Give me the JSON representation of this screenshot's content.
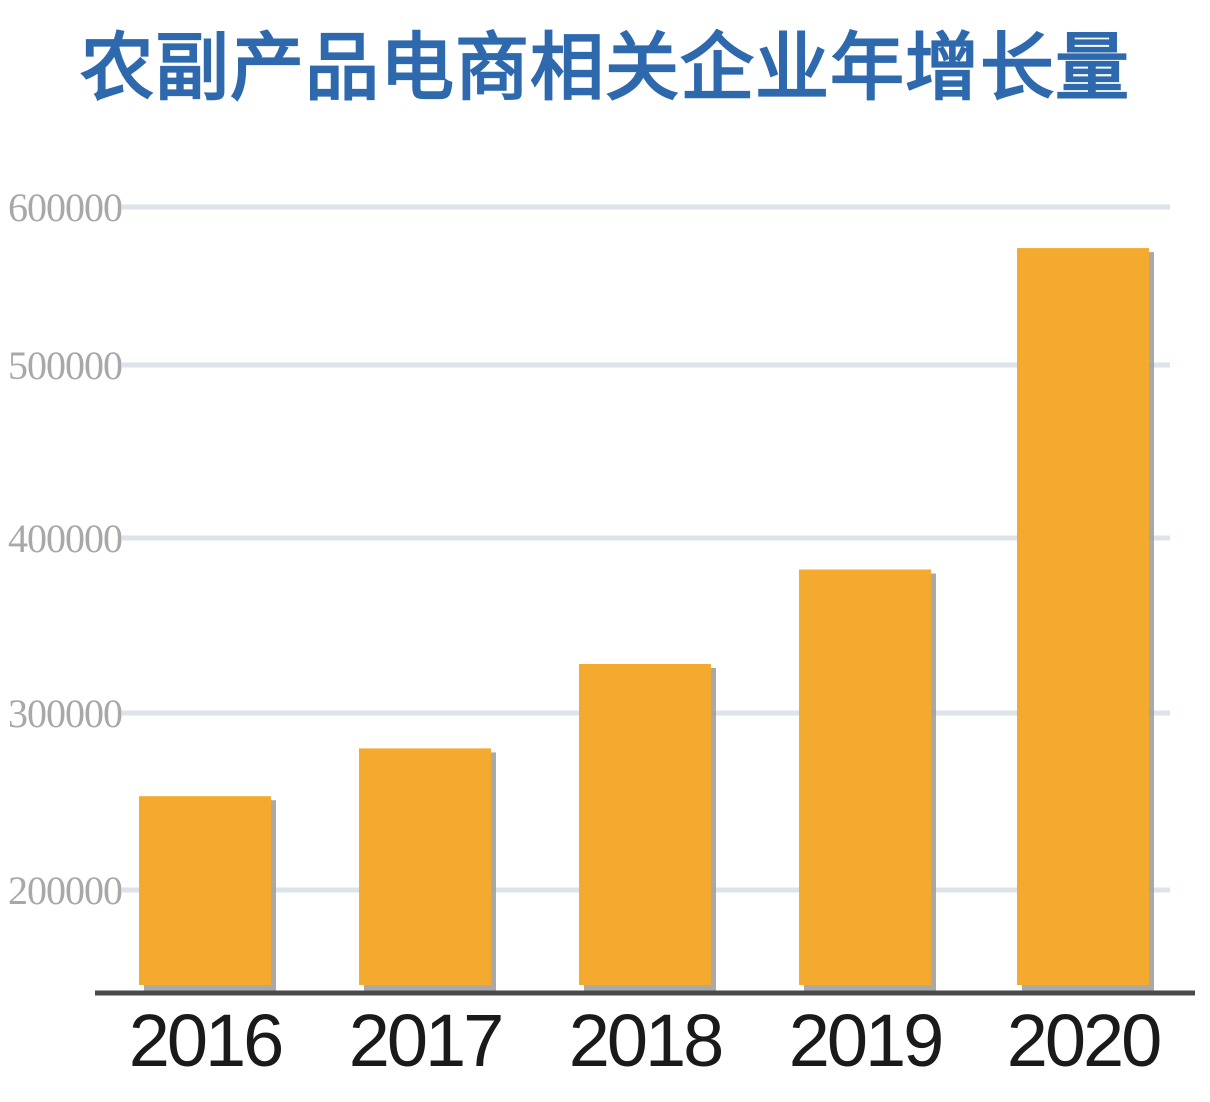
{
  "chart_data": {
    "type": "bar",
    "title": "农副产品电商相关企业年增长量",
    "xlabel": "",
    "ylabel": "",
    "categories": [
      "2016",
      "2017",
      "2018",
      "2019",
      "2020"
    ],
    "values": [
      253000,
      280000,
      328000,
      382000,
      574000
    ],
    "yticks": [
      200000,
      300000,
      400000,
      500000,
      600000
    ],
    "ytick_labels": [
      "200000",
      "300000",
      "400000",
      "500000",
      "600000"
    ],
    "grid": true,
    "legend": "none",
    "colors": {
      "title": "#2e68ad",
      "bar": "#f3aa2f",
      "bar_shadow": "#9a9a9a",
      "grid": "#dde3ea",
      "ytick": "#a8a8a8",
      "xtick": "#1a1a1a",
      "baseline": "#4a4a4a"
    }
  }
}
